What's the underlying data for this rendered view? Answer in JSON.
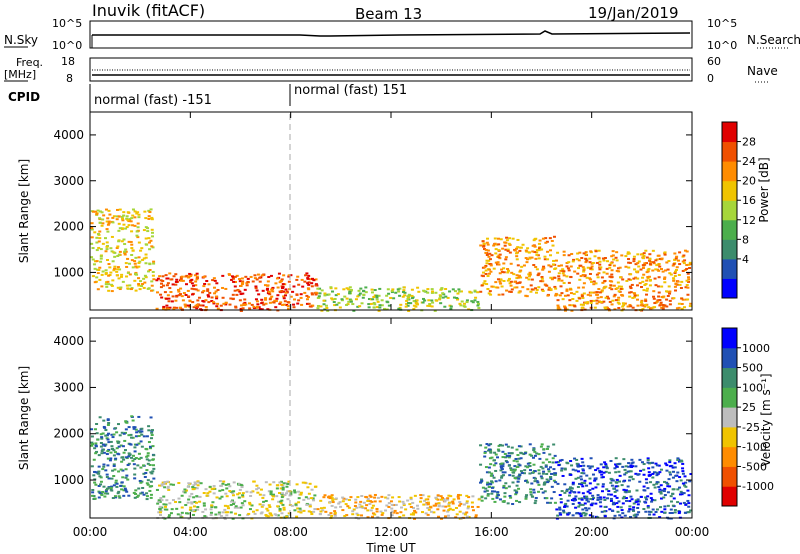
{
  "header": {
    "station": "Inuvik (fitACF)",
    "beam": "Beam 13",
    "date": "19/Jan/2019"
  },
  "top_panels": {
    "nsky_label": "N.Sky",
    "nsky_ticks": [
      "10^5",
      "10^0"
    ],
    "nsearch_label": "N.Search",
    "nsearch_ticks": [
      "10^5",
      "10^0"
    ],
    "freq_label_1": "Freq.",
    "freq_label_2": "[MHz]",
    "freq_ticks": [
      "18",
      "8"
    ],
    "nave_label": "Nave",
    "nave_ticks": [
      "60",
      "0"
    ],
    "cpid_label": "CPID",
    "cpid_segments": [
      "normal (fast) -151",
      "normal (fast) 151"
    ]
  },
  "chart_data": [
    {
      "type": "heatmap",
      "title": "",
      "ylabel": "Slant Range [km]",
      "xlabel": "",
      "ylim": [
        180,
        4500
      ],
      "yticks": [
        "4000",
        "3000",
        "2000",
        "1000"
      ],
      "yticks_values": [
        4000,
        3000,
        2000,
        1000
      ],
      "colorbar": {
        "label": "Power [dB]",
        "ticks": [
          "28",
          "24",
          "20",
          "16",
          "12",
          "8",
          "4"
        ],
        "colors": [
          "#0000ff",
          "#2050b4",
          "#3c8c6c",
          "#4cae4c",
          "#a6d63a",
          "#f0c400",
          "#ff8c00",
          "#f05000",
          "#e00000"
        ]
      },
      "bands": [
        {
          "t0": 0.0,
          "t1": 2.5,
          "r0": 600,
          "r1": 2400,
          "level": 5
        },
        {
          "t0": 2.6,
          "t1": 9.0,
          "r0": 180,
          "r1": 1000,
          "level": 7
        },
        {
          "t0": 9.0,
          "t1": 15.5,
          "r0": 180,
          "r1": 700,
          "level": 4
        },
        {
          "t0": 15.5,
          "t1": 18.5,
          "r0": 500,
          "r1": 1800,
          "level": 6
        },
        {
          "t0": 18.5,
          "t1": 23.9,
          "r0": 180,
          "r1": 1500,
          "level": 6
        }
      ]
    },
    {
      "type": "heatmap",
      "title": "",
      "ylabel": "Slant Range [km]",
      "xlabel": "Time UT",
      "ylim": [
        180,
        4500
      ],
      "yticks": [
        "4000",
        "3000",
        "2000",
        "1000"
      ],
      "yticks_values": [
        4000,
        3000,
        2000,
        1000
      ],
      "colorbar": {
        "label": "Velocity [m s⁻¹]",
        "ticks": [
          "1000",
          "500",
          "100",
          "25",
          "-25",
          "-100",
          "-500",
          "-1000"
        ],
        "colors": [
          "#e00000",
          "#f05000",
          "#ff8c00",
          "#f0c400",
          "#bdbdbd",
          "#4cae4c",
          "#3c8c6c",
          "#2050b4",
          "#0000ff"
        ]
      },
      "bands": [
        {
          "t0": 0.0,
          "t1": 2.5,
          "r0": 600,
          "r1": 2400,
          "level": 6
        },
        {
          "t0": 2.6,
          "t1": 9.0,
          "r0": 180,
          "r1": 1000,
          "level": 4
        },
        {
          "t0": 9.0,
          "t1": 15.5,
          "r0": 180,
          "r1": 700,
          "level": 3
        },
        {
          "t0": 15.5,
          "t1": 18.5,
          "r0": 500,
          "r1": 1800,
          "level": 6
        },
        {
          "t0": 18.5,
          "t1": 23.9,
          "r0": 180,
          "r1": 1500,
          "level": 7
        }
      ]
    }
  ],
  "time_axis": {
    "ticks": [
      "00:00",
      "04:00",
      "08:00",
      "12:00",
      "16:00",
      "20:00",
      "00:00"
    ],
    "tick_hours": [
      0,
      4,
      8,
      12,
      16,
      20,
      24
    ],
    "label": "Time UT"
  }
}
